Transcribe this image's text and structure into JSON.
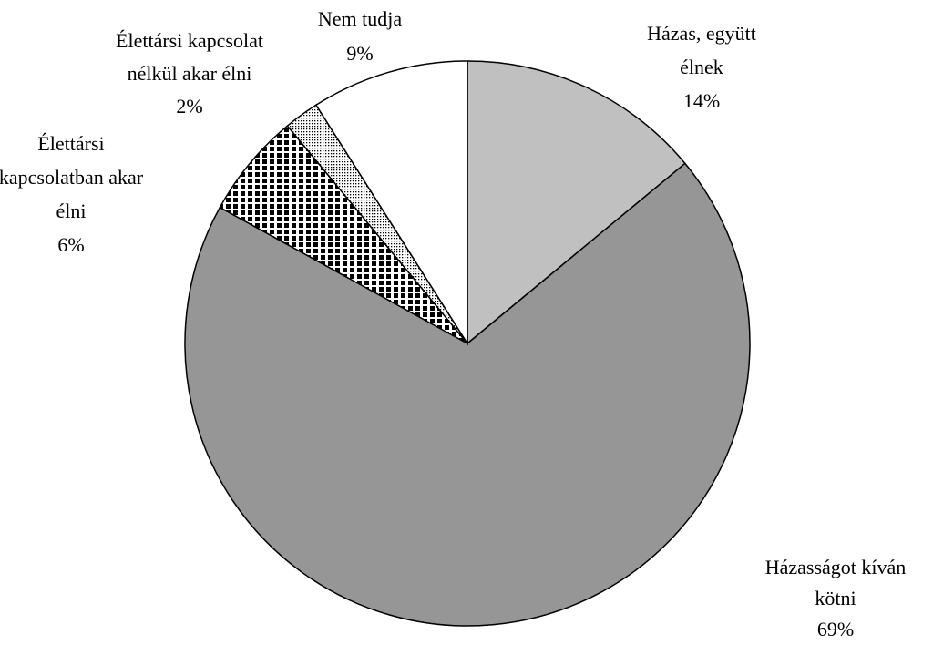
{
  "chart_data": {
    "type": "pie",
    "categories": [
      "Házas, együtt\nélnek",
      "Házasságot kíván\nkötni",
      "Élettársi\nkapcsolatban akar\nélni",
      "Élettársi kapcsolat\nnélkül akar élni",
      "Nem tudja"
    ],
    "values": [
      14,
      69,
      6,
      2,
      9
    ],
    "value_labels": [
      "14%",
      "69%",
      "6%",
      "2%",
      "9%"
    ],
    "fills": [
      "#c0c0c0",
      "#969696",
      "stripes",
      "dots",
      "#ffffff"
    ]
  }
}
